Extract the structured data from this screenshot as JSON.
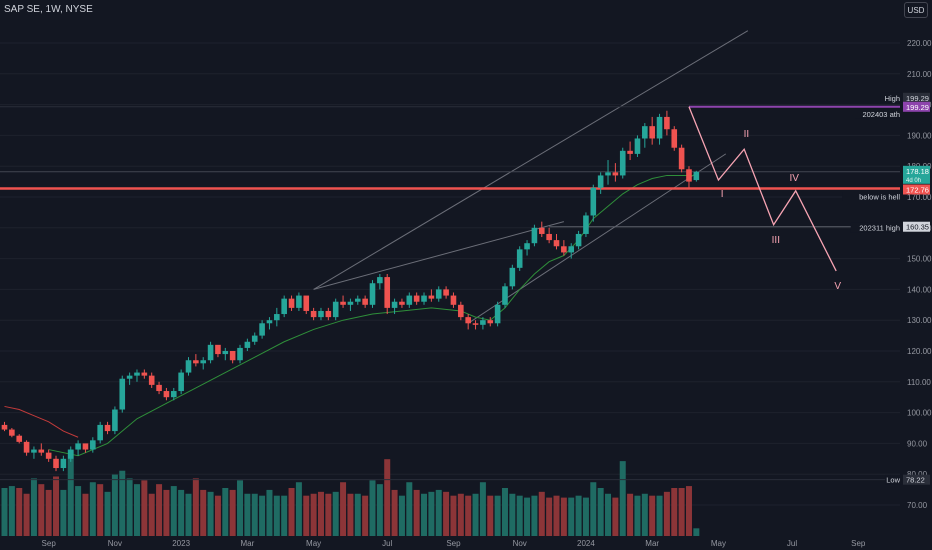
{
  "header": {
    "title": "SAP SE, 1W, NYSE",
    "currency": "USD"
  },
  "colors": {
    "up": "#26a69a",
    "down": "#ef5350",
    "vol_up": "#1f6b63",
    "vol_down": "#8c3538",
    "bg": "#131722",
    "ma": "#2f8f3a",
    "ma2": "#c23b3b",
    "resistance": "#ef5350",
    "ath": "#8e44ad",
    "wave": "#f7a4b3",
    "trend": "#6b6e78"
  },
  "chart_data": {
    "type": "candlestick",
    "ylim": [
      62,
      226
    ],
    "yticks": [
      70,
      80,
      90,
      100,
      110,
      120,
      130,
      140,
      150,
      160,
      170,
      180,
      190,
      200,
      210,
      220
    ],
    "x_labels": [
      {
        "text": "Sep",
        "i": 6
      },
      {
        "text": "Nov",
        "i": 15
      },
      {
        "text": "2023",
        "i": 24
      },
      {
        "text": "Mar",
        "i": 33
      },
      {
        "text": "May",
        "i": 42
      },
      {
        "text": "Jul",
        "i": 52
      },
      {
        "text": "Sep",
        "i": 61
      },
      {
        "text": "Nov",
        "i": 70
      },
      {
        "text": "2024",
        "i": 79
      },
      {
        "text": "Mar",
        "i": 88
      },
      {
        "text": "May",
        "i": 97
      },
      {
        "text": "Jul",
        "i": 107
      },
      {
        "text": "Sep",
        "i": 116
      }
    ],
    "candles": [
      [
        96,
        97,
        94,
        94.5
      ],
      [
        94.5,
        95,
        92,
        92.5
      ],
      [
        92.5,
        93,
        90,
        90.5
      ],
      [
        90.5,
        91,
        86,
        87
      ],
      [
        87,
        89,
        85,
        88
      ],
      [
        88,
        90,
        86,
        87
      ],
      [
        87,
        88,
        84,
        85
      ],
      [
        85,
        86,
        81,
        82
      ],
      [
        82,
        86,
        81,
        85
      ],
      [
        85,
        89,
        84,
        88
      ],
      [
        88,
        91,
        86,
        90
      ],
      [
        90,
        89,
        87,
        88
      ],
      [
        88,
        92,
        87,
        91
      ],
      [
        91,
        97,
        90,
        96
      ],
      [
        96,
        97,
        93,
        94
      ],
      [
        94,
        102,
        93,
        101
      ],
      [
        101,
        112,
        100,
        111
      ],
      [
        111,
        113,
        109,
        112
      ],
      [
        112,
        114,
        110,
        113
      ],
      [
        113,
        114,
        111,
        112
      ],
      [
        112,
        113,
        108,
        109
      ],
      [
        109,
        110,
        106,
        107
      ],
      [
        107,
        108,
        104,
        105
      ],
      [
        105,
        108,
        104,
        107
      ],
      [
        107,
        114,
        106,
        113
      ],
      [
        113,
        118,
        112,
        117
      ],
      [
        117,
        119,
        115,
        116
      ],
      [
        116,
        118,
        114,
        117
      ],
      [
        117,
        123,
        116,
        122
      ],
      [
        122,
        121,
        118,
        119
      ],
      [
        119,
        121,
        117,
        120
      ],
      [
        120,
        119,
        116,
        117
      ],
      [
        117,
        122,
        116,
        121
      ],
      [
        121,
        124,
        120,
        123
      ],
      [
        123,
        126,
        122,
        125
      ],
      [
        125,
        130,
        124,
        129
      ],
      [
        129,
        131,
        127,
        130
      ],
      [
        130,
        134,
        128,
        132
      ],
      [
        132,
        138,
        131,
        137
      ],
      [
        137,
        138,
        133,
        134
      ],
      [
        134,
        139,
        133,
        138
      ],
      [
        138,
        137,
        132,
        133
      ],
      [
        133,
        134,
        130,
        131
      ],
      [
        131,
        134,
        130,
        133
      ],
      [
        133,
        134,
        130,
        131
      ],
      [
        131,
        137,
        130,
        136
      ],
      [
        136,
        138,
        134,
        135
      ],
      [
        135,
        137,
        133,
        136
      ],
      [
        136,
        138,
        135,
        137
      ],
      [
        137,
        138,
        134,
        135
      ],
      [
        135,
        143,
        134,
        142
      ],
      [
        142,
        145,
        140,
        144
      ],
      [
        144,
        145,
        132,
        134
      ],
      [
        134,
        137,
        132,
        136
      ],
      [
        136,
        137,
        134,
        135
      ],
      [
        135,
        139,
        134,
        138
      ],
      [
        138,
        139,
        135,
        136
      ],
      [
        136,
        139,
        135,
        138
      ],
      [
        138,
        140,
        136,
        137
      ],
      [
        137,
        141,
        136,
        140
      ],
      [
        140,
        141,
        137,
        138
      ],
      [
        138,
        139,
        134,
        135
      ],
      [
        135,
        136,
        130,
        131
      ],
      [
        131,
        132,
        127,
        129
      ],
      [
        129,
        130,
        127,
        128.5
      ],
      [
        128.5,
        131,
        127,
        130
      ],
      [
        130,
        131,
        128,
        129
      ],
      [
        129,
        136,
        128,
        135
      ],
      [
        135,
        142,
        134,
        141
      ],
      [
        141,
        148,
        140,
        147
      ],
      [
        147,
        154,
        146,
        153
      ],
      [
        153,
        156,
        151,
        155
      ],
      [
        155,
        161,
        154,
        160
      ],
      [
        160,
        162,
        157,
        158
      ],
      [
        158,
        160,
        155,
        156
      ],
      [
        156,
        158,
        153,
        154
      ],
      [
        154,
        156,
        151,
        152
      ],
      [
        152,
        155,
        150,
        154
      ],
      [
        154,
        159,
        153,
        158
      ],
      [
        158,
        165,
        157,
        164
      ],
      [
        164,
        174,
        162,
        173
      ],
      [
        173,
        178,
        171,
        177
      ],
      [
        177,
        182,
        174,
        178
      ],
      [
        178,
        181,
        175,
        177
      ],
      [
        177,
        186,
        176,
        185
      ],
      [
        185,
        188,
        182,
        184
      ],
      [
        184,
        190,
        183,
        189
      ],
      [
        189,
        194,
        186,
        193
      ],
      [
        193,
        196,
        187,
        189
      ],
      [
        189,
        197,
        187,
        196
      ],
      [
        196,
        198,
        190,
        192
      ],
      [
        192,
        193,
        185,
        186
      ],
      [
        186,
        187,
        178,
        179
      ],
      [
        179,
        180,
        173,
        175
      ],
      [
        175.5,
        178.5,
        175,
        178.18
      ]
    ],
    "volumes": [
      [
        25,
        0
      ],
      [
        26,
        0
      ],
      [
        25,
        1
      ],
      [
        22,
        1
      ],
      [
        30,
        0
      ],
      [
        27,
        1
      ],
      [
        24,
        1
      ],
      [
        31,
        1
      ],
      [
        24,
        0
      ],
      [
        45,
        0
      ],
      [
        26,
        0
      ],
      [
        22,
        1
      ],
      [
        28,
        0
      ],
      [
        27,
        1
      ],
      [
        23,
        0
      ],
      [
        32,
        0
      ],
      [
        34,
        0
      ],
      [
        30,
        0
      ],
      [
        27,
        0
      ],
      [
        29,
        1
      ],
      [
        22,
        1
      ],
      [
        27,
        1
      ],
      [
        24,
        1
      ],
      [
        26,
        0
      ],
      [
        24,
        0
      ],
      [
        22,
        0
      ],
      [
        30,
        1
      ],
      [
        24,
        1
      ],
      [
        23,
        0
      ],
      [
        21,
        1
      ],
      [
        25,
        0
      ],
      [
        24,
        1
      ],
      [
        29,
        0
      ],
      [
        22,
        0
      ],
      [
        22,
        0
      ],
      [
        21,
        0
      ],
      [
        24,
        0
      ],
      [
        21,
        0
      ],
      [
        21,
        0
      ],
      [
        25,
        1
      ],
      [
        28,
        0
      ],
      [
        21,
        1
      ],
      [
        22,
        1
      ],
      [
        23,
        1
      ],
      [
        22,
        1
      ],
      [
        23,
        0
      ],
      [
        28,
        1
      ],
      [
        22,
        1
      ],
      [
        22,
        0
      ],
      [
        21,
        1
      ],
      [
        29,
        0
      ],
      [
        27,
        0
      ],
      [
        40,
        1
      ],
      [
        24,
        1
      ],
      [
        21,
        0
      ],
      [
        28,
        0
      ],
      [
        24,
        1
      ],
      [
        22,
        0
      ],
      [
        23,
        0
      ],
      [
        24,
        0
      ],
      [
        23,
        1
      ],
      [
        21,
        1
      ],
      [
        22,
        1
      ],
      [
        21,
        1
      ],
      [
        22,
        0
      ],
      [
        28,
        0
      ],
      [
        21,
        1
      ],
      [
        21,
        0
      ],
      [
        25,
        0
      ],
      [
        22,
        0
      ],
      [
        21,
        0
      ],
      [
        20,
        0
      ],
      [
        21,
        0
      ],
      [
        23,
        1
      ],
      [
        20,
        1
      ],
      [
        21,
        1
      ],
      [
        20,
        1
      ],
      [
        20,
        0
      ],
      [
        21,
        0
      ],
      [
        20,
        0
      ],
      [
        28,
        0
      ],
      [
        25,
        0
      ],
      [
        22,
        0
      ],
      [
        20,
        1
      ],
      [
        39,
        0
      ],
      [
        22,
        1
      ],
      [
        21,
        0
      ],
      [
        22,
        0
      ],
      [
        21,
        1
      ],
      [
        21,
        0
      ],
      [
        23,
        1
      ],
      [
        25,
        1
      ],
      [
        25,
        1
      ],
      [
        26,
        1
      ],
      [
        4,
        0
      ]
    ],
    "ma": [
      [
        0,
        null
      ],
      [
        6,
        88
      ],
      [
        10,
        86
      ],
      [
        14,
        90
      ],
      [
        18,
        98
      ],
      [
        22,
        103
      ],
      [
        26,
        108
      ],
      [
        30,
        113
      ],
      [
        34,
        118
      ],
      [
        38,
        123
      ],
      [
        42,
        127
      ],
      [
        46,
        130
      ],
      [
        50,
        132
      ],
      [
        54,
        133
      ],
      [
        58,
        134
      ],
      [
        62,
        133
      ],
      [
        64,
        131
      ],
      [
        66,
        130
      ],
      [
        68,
        134
      ],
      [
        70,
        140
      ],
      [
        72,
        145
      ],
      [
        74,
        149
      ],
      [
        76,
        151
      ],
      [
        78,
        156
      ],
      [
        80,
        163
      ],
      [
        82,
        167
      ],
      [
        84,
        171
      ],
      [
        86,
        174
      ],
      [
        88,
        176
      ],
      [
        90,
        177
      ],
      [
        93,
        177
      ],
      [
        94,
        177
      ]
    ],
    "ma2": [
      [
        0,
        102
      ],
      [
        2,
        101
      ],
      [
        4,
        99
      ],
      [
        6,
        97
      ],
      [
        8,
        94
      ],
      [
        10,
        92
      ]
    ],
    "price_tags": {
      "high_label": "High",
      "high_value": "199.29",
      "ath_value": "199.29",
      "ath_label": "202403 ath",
      "last_value": "178.18",
      "last_sub": "4d 0h",
      "resistance_value": "172.76",
      "resistance_label": "below is hell",
      "level_value": "160.35",
      "level_label": "202311 high",
      "low_label": "Low",
      "low_value": "78.22"
    },
    "levels": {
      "ath": 199.29,
      "last": 178.18,
      "resistance": 172.76,
      "level": 160.35,
      "low": 78.22,
      "ath_top": 199.29
    },
    "waves": {
      "labels": [
        "I",
        "II",
        "III",
        "IV",
        "V"
      ]
    }
  }
}
